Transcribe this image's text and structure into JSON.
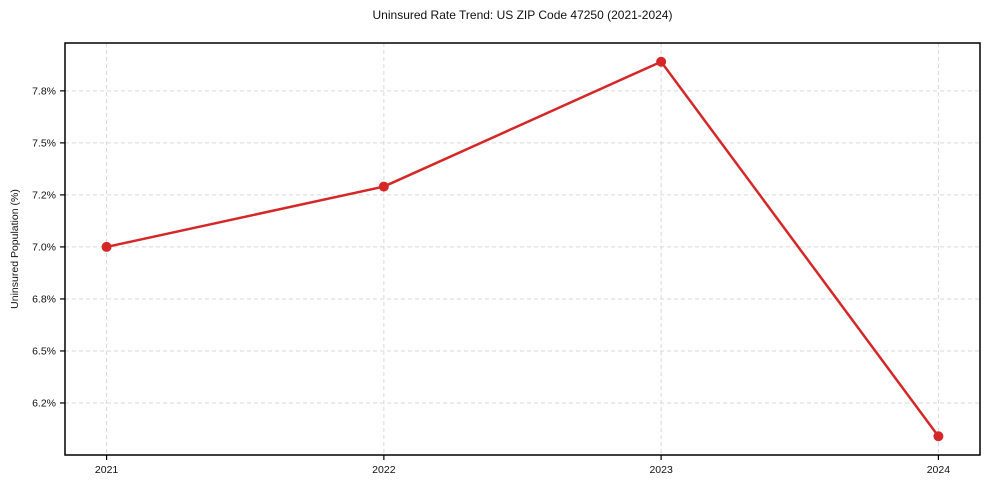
{
  "page": {
    "background_color": "#ffffff",
    "text_color": "#111111"
  },
  "chart_data": {
    "type": "line",
    "title": "Uninsured Rate Trend: US ZIP Code 47250 (2021-2024)",
    "xlabel": "",
    "ylabel": "Uninsured Population (%)",
    "x": [
      2021,
      2022,
      2023,
      2024
    ],
    "x_tick_labels": [
      "2021",
      "2022",
      "2023",
      "2024"
    ],
    "series": [
      {
        "name": "uninsured-rate",
        "values": [
          7.0,
          7.29,
          7.89,
          6.09
        ]
      }
    ],
    "ylim": [
      6.0,
      7.98
    ],
    "ytick_values": [
      6.25,
      6.5,
      6.75,
      7.0,
      7.25,
      7.5,
      7.75
    ],
    "ytick_labels": [
      "6.2%",
      "6.5%",
      "6.8%",
      "7.0%",
      "7.2%",
      "7.5%",
      "7.8%"
    ],
    "grid": "dashed",
    "grid_color": "#d9d9d9",
    "line_color": "#d62728",
    "marker": "circle",
    "marker_color": "#d62728",
    "axis_color": "#000000",
    "legend": "none"
  }
}
